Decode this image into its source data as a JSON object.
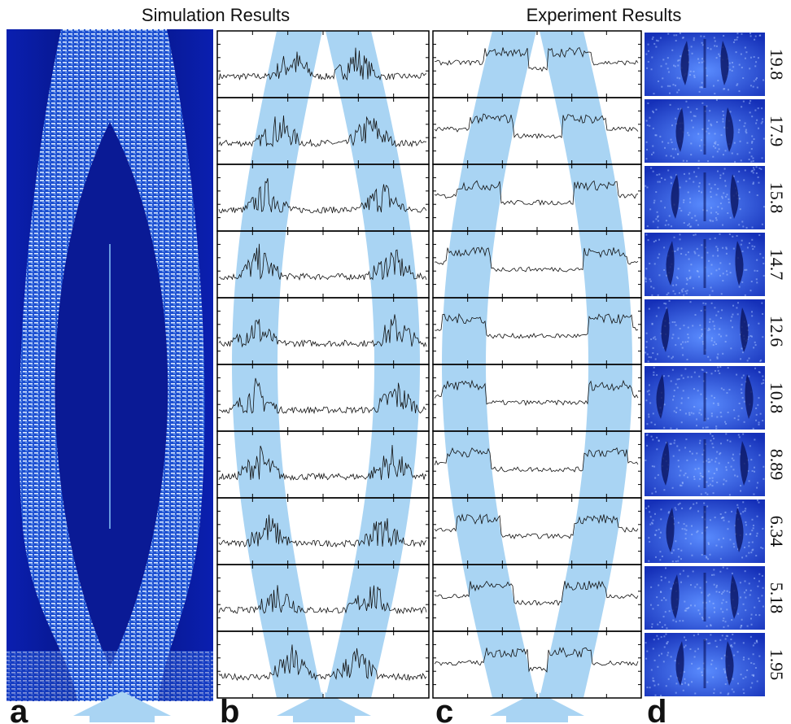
{
  "header": {
    "simulation_title": "Simulation Results",
    "experiment_title": "Experiment Results"
  },
  "panels": [
    "a",
    "b",
    "c",
    "d"
  ],
  "d_labels": [
    "19.8",
    "17.9",
    "15.8",
    "14.7",
    "12.6",
    "10.8",
    "8.89",
    "6.34",
    "5.18",
    "1.95"
  ]
}
